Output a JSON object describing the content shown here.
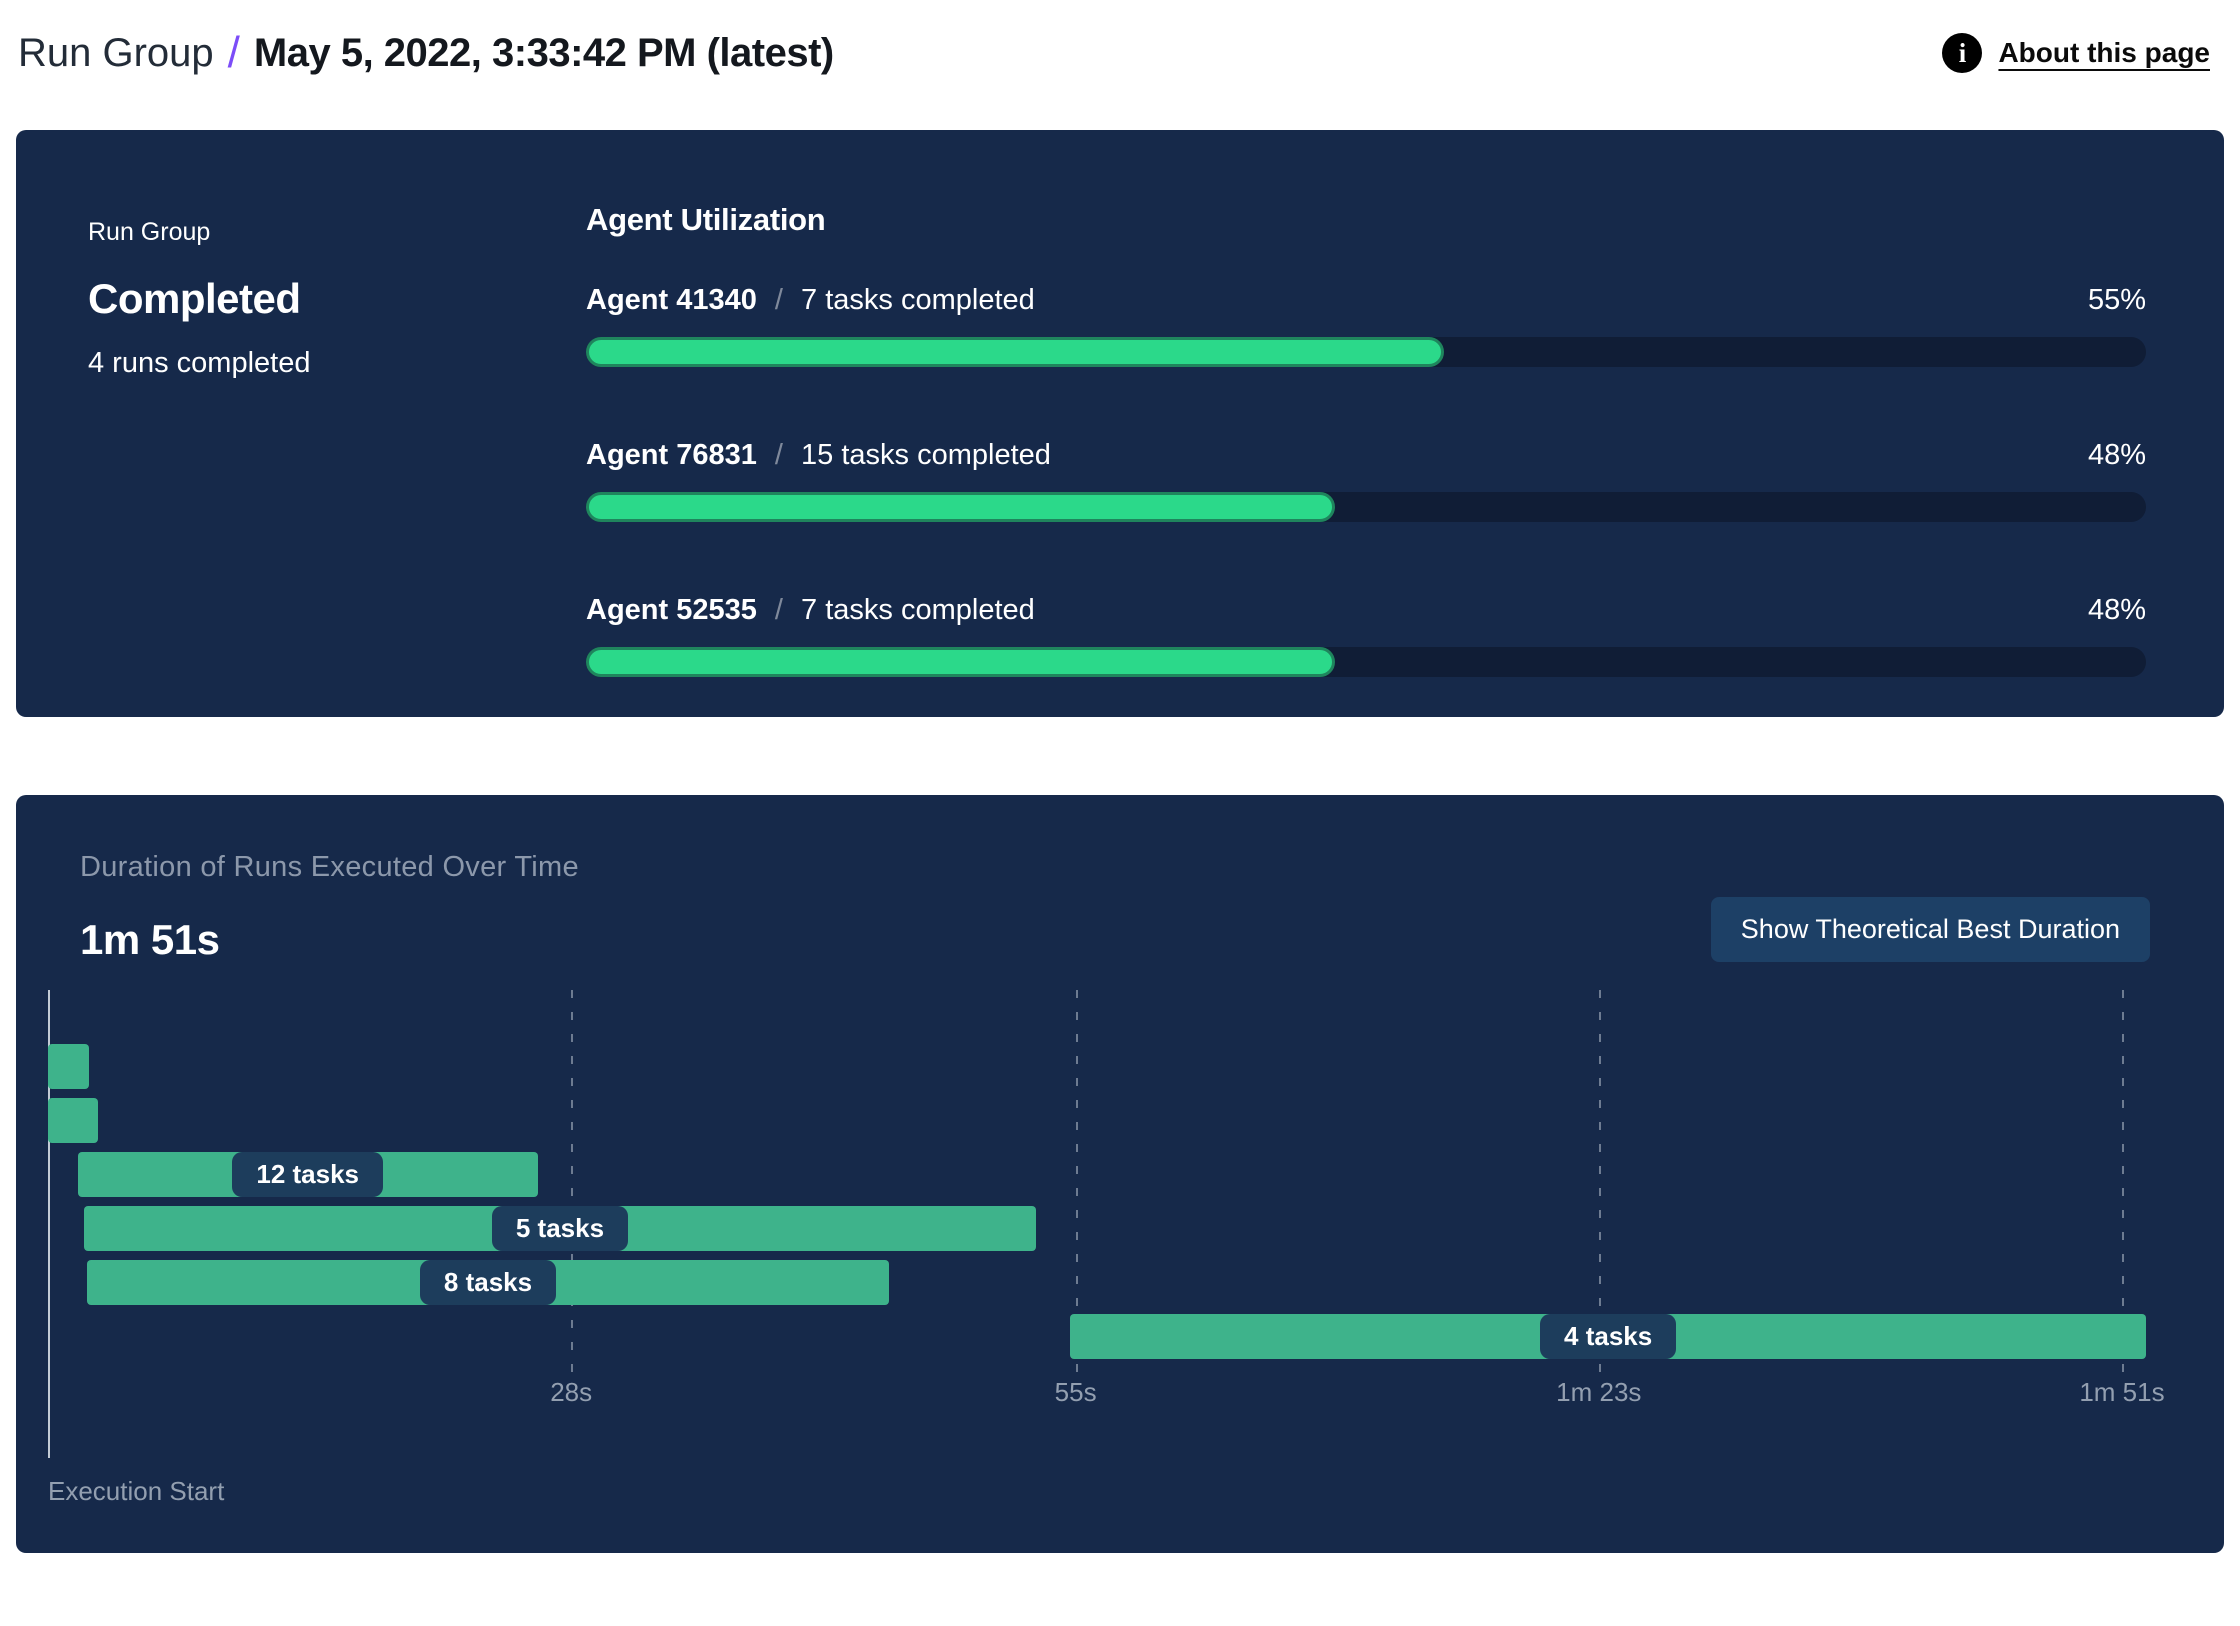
{
  "header": {
    "breadcrumb_root": "Run Group",
    "breadcrumb_separator": "/",
    "breadcrumb_current": "May 5, 2022, 3:33:42 PM (latest)",
    "about_link": "About this page",
    "info_icon": "info-icon"
  },
  "summary_panel": {
    "label": "Run Group",
    "status": "Completed",
    "runs_completed": "4 runs completed",
    "utilization": {
      "title": "Agent Utilization",
      "separator": "/",
      "agents": [
        {
          "name": "Agent 41340",
          "tasks": "7 tasks completed",
          "percent": 55,
          "percent_label": "55%"
        },
        {
          "name": "Agent 76831",
          "tasks": "15 tasks completed",
          "percent": 48,
          "percent_label": "48%"
        },
        {
          "name": "Agent 52535",
          "tasks": "7 tasks completed",
          "percent": 48,
          "percent_label": "48%"
        }
      ]
    }
  },
  "duration_panel": {
    "title": "Duration of Runs Executed Over Time",
    "total_duration": "1m 51s",
    "button_label": "Show Theoretical Best Duration",
    "execution_start_label": "Execution Start"
  },
  "chart_data": [
    {
      "type": "bar",
      "title": "Agent Utilization",
      "orientation": "horizontal",
      "categories": [
        "Agent 41340",
        "Agent 76831",
        "Agent 52535"
      ],
      "values": [
        55,
        48,
        48
      ],
      "value_unit": "%",
      "annotations": [
        "7 tasks completed",
        "15 tasks completed",
        "7 tasks completed"
      ],
      "xlim": [
        0,
        100
      ]
    },
    {
      "type": "gantt",
      "title": "Duration of Runs Executed Over Time",
      "total_duration_label": "1m 51s",
      "xlabel_start": "Execution Start",
      "time_axis": {
        "unit": "seconds",
        "min": 0,
        "max": 112.5,
        "ticks": [
          {
            "seconds": 28,
            "label": "28s"
          },
          {
            "seconds": 55,
            "label": "55s"
          },
          {
            "seconds": 83,
            "label": "1m 23s"
          },
          {
            "seconds": 111,
            "label": "1m 51s"
          }
        ]
      },
      "bars": [
        {
          "label": "",
          "start_s": 0,
          "end_s": 2.2
        },
        {
          "label": "",
          "start_s": 0,
          "end_s": 2.7
        },
        {
          "label": "12 tasks",
          "start_s": 1.6,
          "end_s": 26.2
        },
        {
          "label": "5 tasks",
          "start_s": 1.9,
          "end_s": 52.9
        },
        {
          "label": "8 tasks",
          "start_s": 2.1,
          "end_s": 45.0
        },
        {
          "label": "4 tasks",
          "start_s": 54.7,
          "end_s": 112.3
        }
      ]
    }
  ],
  "colors": {
    "panel_background": "#16294a",
    "progress_track": "#101d36",
    "progress_fill": "#2bd98a",
    "progress_fill_rim": "#1f855d",
    "gantt_bar": "#3eb38b",
    "badge_background": "#1d3d5c",
    "button_background": "#1d4066",
    "muted_text": "#8c98ab",
    "axis_text": "#939fb0",
    "breadcrumb_accent": "#7c4df8"
  }
}
